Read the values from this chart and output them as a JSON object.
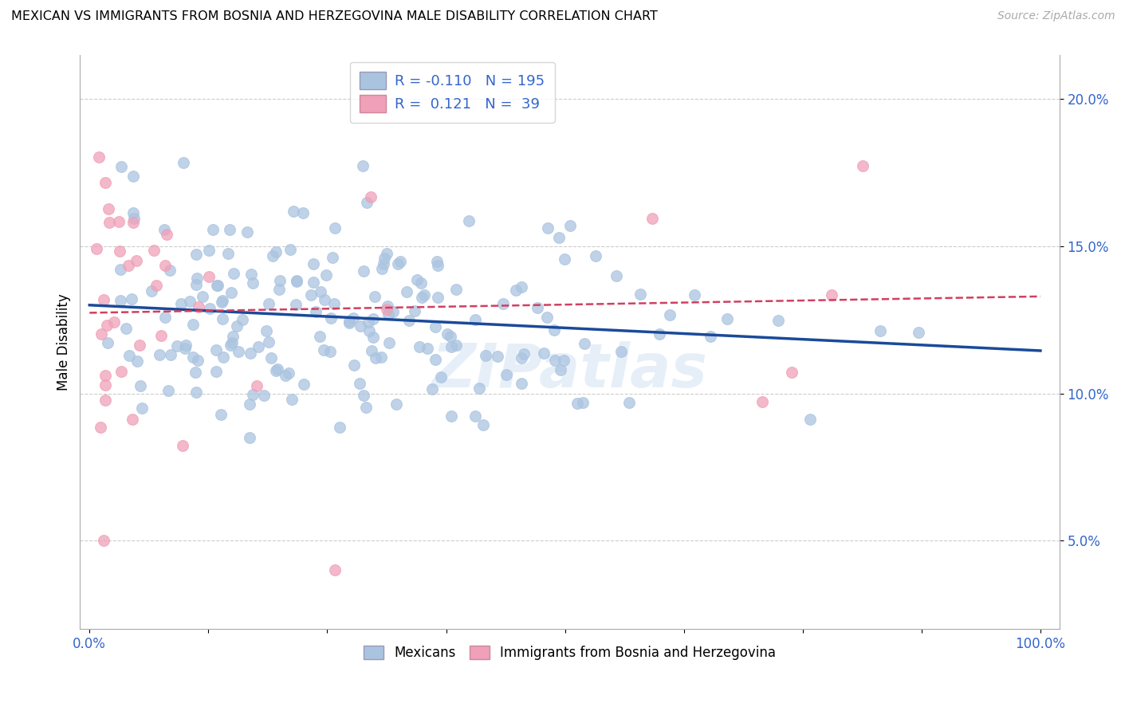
{
  "title": "MEXICAN VS IMMIGRANTS FROM BOSNIA AND HERZEGOVINA MALE DISABILITY CORRELATION CHART",
  "source": "Source: ZipAtlas.com",
  "ylabel": "Male Disability",
  "R_blue": -0.11,
  "N_blue": 195,
  "R_pink": 0.121,
  "N_pink": 39,
  "blue_color": "#aac4e0",
  "pink_color": "#f0a0b8",
  "blue_line_color": "#1a4a9a",
  "pink_line_color": "#d04060",
  "ytick_labels_right": [
    "5.0%",
    "10.0%",
    "15.0%",
    "20.0%"
  ],
  "yticks": [
    0.05,
    0.1,
    0.15,
    0.2
  ],
  "ylim_low": 0.02,
  "ylim_high": 0.215,
  "xlim_low": -0.01,
  "xlim_high": 1.02,
  "watermark": "ZIPatlas"
}
